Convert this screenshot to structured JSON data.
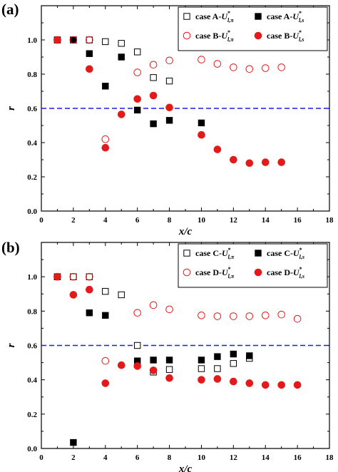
{
  "chart_data": [
    {
      "panel_label": "(a)",
      "type": "scatter",
      "xlabel": "x/c",
      "ylabel": "r",
      "xlim": [
        0,
        18
      ],
      "ylim": [
        0,
        1.2
      ],
      "x_ticks": [
        "0",
        "2",
        "4",
        "6",
        "8",
        "10",
        "12",
        "14",
        "16",
        "18"
      ],
      "y_ticks": [
        "0.0",
        "0.2",
        "0.4",
        "0.6",
        "0.8",
        "1.0"
      ],
      "reference_line": {
        "y": 0.6,
        "style": "dashed",
        "color": "#1a1aee"
      },
      "legend_placement": "top-right",
      "series": [
        {
          "legend_prefix": "case A-",
          "legend_sym": "U",
          "legend_sub": "l,π",
          "marker": "square-open",
          "color": "#000000",
          "x": [
            1,
            2,
            3,
            4,
            5,
            6,
            7,
            8
          ],
          "y": [
            1.0,
            1.0,
            1.0,
            0.99,
            0.98,
            0.93,
            0.78,
            0.76
          ]
        },
        {
          "legend_prefix": "case A-",
          "legend_sym": "U",
          "legend_sub": "l,s",
          "marker": "square-filled",
          "color": "#000000",
          "x": [
            1,
            2,
            3,
            4,
            5,
            6,
            7,
            8,
            10
          ],
          "y": [
            1.0,
            1.0,
            0.92,
            0.73,
            0.9,
            0.59,
            0.51,
            0.53,
            0.515
          ]
        },
        {
          "legend_prefix": "case B-",
          "legend_sym": "U",
          "legend_sub": "l,π",
          "marker": "circle-open",
          "color": "#e41a1a",
          "x": [
            1,
            2,
            3,
            4,
            6,
            7,
            8,
            10,
            11,
            12,
            13,
            14,
            15
          ],
          "y": [
            1.0,
            1.0,
            1.0,
            0.42,
            0.81,
            0.855,
            0.88,
            0.885,
            0.86,
            0.84,
            0.83,
            0.835,
            0.84
          ]
        },
        {
          "legend_prefix": "case B-",
          "legend_sym": "U",
          "legend_sub": "l,s",
          "marker": "circle-filled",
          "color": "#e41a1a",
          "x": [
            1,
            3,
            4,
            5,
            6,
            7,
            8,
            10,
            11,
            12,
            13,
            14,
            15
          ],
          "y": [
            1.0,
            0.83,
            0.37,
            0.565,
            0.655,
            0.675,
            0.605,
            0.445,
            0.36,
            0.3,
            0.28,
            0.285,
            0.285
          ]
        }
      ]
    },
    {
      "panel_label": "(b)",
      "type": "scatter",
      "xlabel": "x/c",
      "ylabel": "r",
      "xlim": [
        0,
        18
      ],
      "ylim": [
        0,
        1.2
      ],
      "x_ticks": [
        "0",
        "2",
        "4",
        "6",
        "8",
        "10",
        "12",
        "14",
        "16",
        "18"
      ],
      "y_ticks": [
        "0.0",
        "0.2",
        "0.4",
        "0.6",
        "0.8",
        "1.0"
      ],
      "reference_line": {
        "y": 0.6,
        "style": "dashed",
        "color": "#1a1aee"
      },
      "legend_placement": "top-right",
      "series": [
        {
          "legend_prefix": "case C-",
          "legend_sym": "U",
          "legend_sub": "l,π",
          "marker": "square-open",
          "color": "#000000",
          "x": [
            1,
            2,
            3,
            4,
            5,
            6,
            7,
            8,
            10,
            11,
            12,
            13
          ],
          "y": [
            1.0,
            1.0,
            1.0,
            0.915,
            0.895,
            0.6,
            0.445,
            0.46,
            0.465,
            0.465,
            0.495,
            0.525
          ]
        },
        {
          "legend_prefix": "case C-",
          "legend_sym": "U",
          "legend_sub": "l,s",
          "marker": "square-filled",
          "color": "#000000",
          "x": [
            1,
            2,
            3,
            4,
            6,
            7,
            8,
            10,
            11,
            12,
            13
          ],
          "y": [
            1.0,
            0.035,
            0.79,
            0.775,
            0.51,
            0.515,
            0.515,
            0.515,
            0.535,
            0.55,
            0.54
          ]
        },
        {
          "legend_prefix": "case D-",
          "legend_sym": "U",
          "legend_sub": "l,π",
          "marker": "circle-open",
          "color": "#e41a1a",
          "x": [
            1,
            2,
            3,
            4,
            6,
            7,
            8,
            10,
            11,
            12,
            13,
            14,
            15,
            16
          ],
          "y": [
            1.0,
            1.0,
            1.0,
            0.51,
            0.79,
            0.835,
            0.81,
            0.775,
            0.77,
            0.77,
            0.77,
            0.775,
            0.78,
            0.755
          ]
        },
        {
          "legend_prefix": "case D-",
          "legend_sym": "U",
          "legend_sub": "l,s",
          "marker": "circle-filled",
          "color": "#e41a1a",
          "x": [
            1,
            2,
            3,
            4,
            5,
            6,
            7,
            8,
            10,
            11,
            12,
            13,
            14,
            15,
            16
          ],
          "y": [
            1.0,
            0.895,
            0.925,
            0.38,
            0.485,
            0.48,
            0.455,
            0.41,
            0.4,
            0.405,
            0.39,
            0.38,
            0.37,
            0.37,
            0.37
          ]
        }
      ]
    }
  ]
}
